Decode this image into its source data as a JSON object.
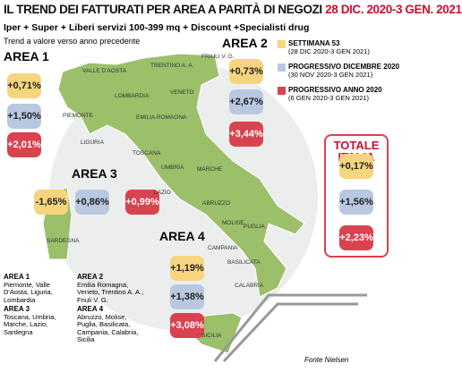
{
  "header": {
    "title": "IL TREND DEI FATTURATI PER AREA A PARITÀ DI NEGOZI",
    "title_date": "28 DIC. 2020-3 GEN. 2021",
    "subtitle": "Iper + Super + Liberi servizi 100-399 mq + Discount +Specialisti drug",
    "note": "Trend a valore verso anno precedente"
  },
  "legend": [
    {
      "label": "SETTIMANA 53",
      "period": "(28 DIC 2020-3 GEN 2021)"
    },
    {
      "label": "PROGRESSIVO DICEMBRE 2020",
      "period": "(30 NOV 2020-3 GEN 2021)"
    },
    {
      "label": "PROGRESSIVO ANNO 2020",
      "period": "(6 GEN 2020-3 GEN 2021)"
    }
  ],
  "areas": [
    {
      "name": "AREA 1",
      "values": [
        "+0,71%",
        "+1,50%",
        "+2,01%"
      ]
    },
    {
      "name": "AREA 2",
      "values": [
        "+0,73%",
        "+2,67%",
        "+3,44%"
      ]
    },
    {
      "name": "AREA 3",
      "values": [
        "-1,65%",
        "+0,86%",
        "+0,99%"
      ]
    },
    {
      "name": "AREA 4",
      "values": [
        "+1,19%",
        "+1,38%",
        "+3,08%"
      ]
    }
  ],
  "total": {
    "name": "TOTALE ITALIA",
    "values": [
      "+0,17%",
      "+1,56%",
      "+2,23%"
    ]
  },
  "regions": [
    "VALLE D'AOSTA",
    "PIEMONTE",
    "LOMBARDIA",
    "LIGURIA",
    "TRENTINO A. A.",
    "FRIULI V. G.",
    "VENETO",
    "EMILIA ROMAGNA",
    "TOSCANA",
    "UMBRIA",
    "MARCHE",
    "LAZIO",
    "ABRUZZO",
    "MOLISE",
    "SARDEGNA",
    "CAMPANIA",
    "PUGLIA",
    "BASILICATA",
    "CALABRIA",
    "SICILIA"
  ],
  "key": [
    {
      "name": "AREA 1",
      "regions": "Piemonte, Valle D'Aosta, Liguria, Lombardia"
    },
    {
      "name": "AREA 2",
      "regions": "Emilia Romagna, Veneto, Trentino A. A., Friuli V. G."
    },
    {
      "name": "AREA 3",
      "regions": "Toscana, Umbria, Marche, Lazio, Sardegna"
    },
    {
      "name": "AREA 4",
      "regions": "Abruzzo, Molise, Puglia, Basilicata, Campania, Calabria, Sicilia"
    }
  ],
  "source": "Fonte Nielsen"
}
